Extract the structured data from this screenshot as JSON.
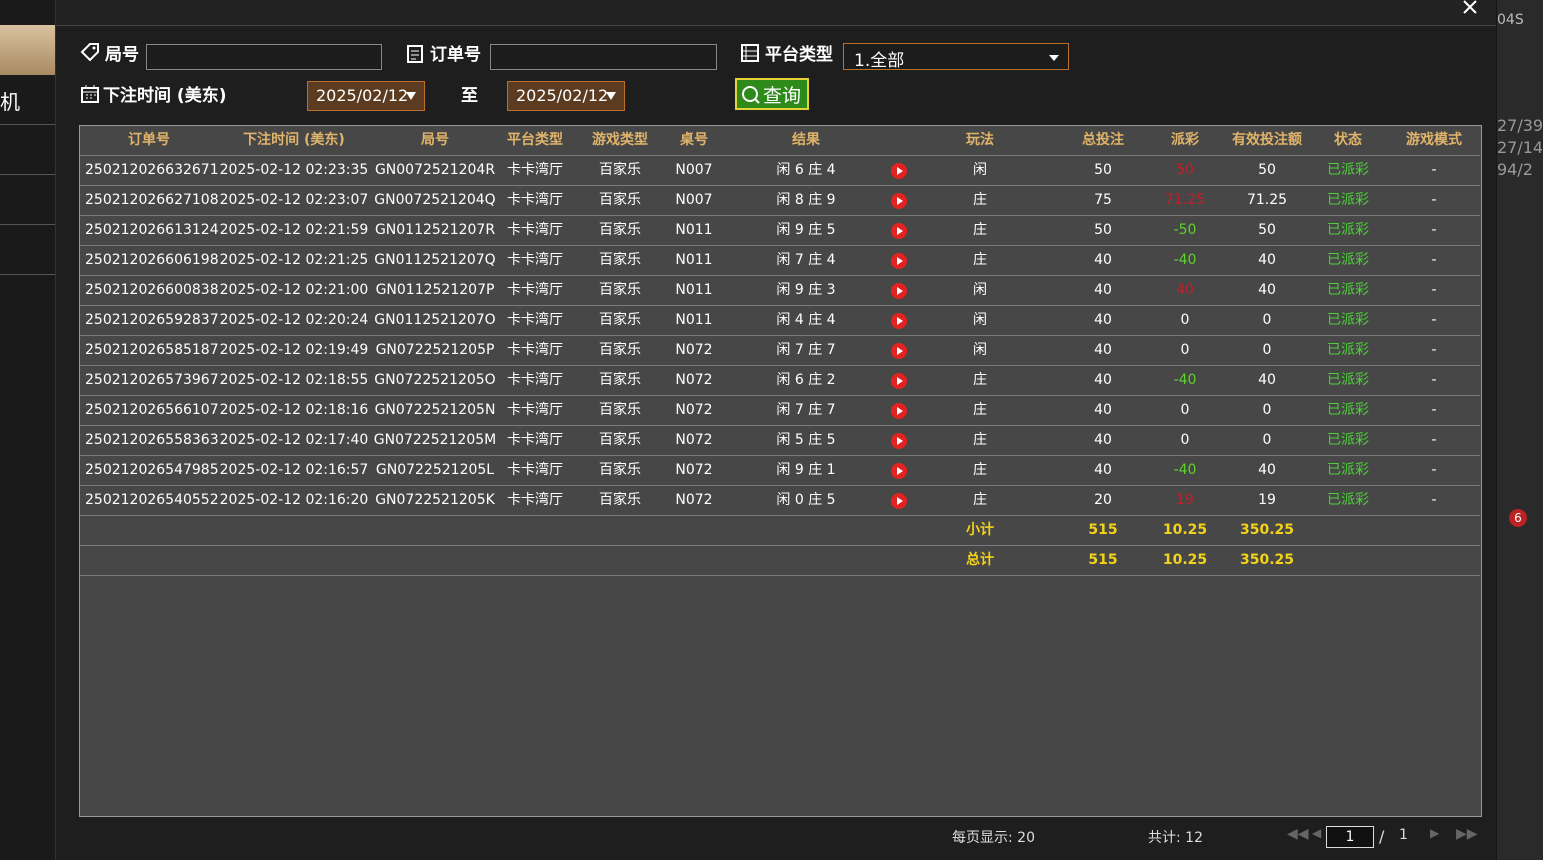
{
  "sidebar": {
    "items": [
      "机"
    ]
  },
  "filters": {
    "round_label": "局号",
    "order_label": "订单号",
    "platform_label": "平台类型",
    "platform_value": "1.全部",
    "time_label": "下注时间 (美东)",
    "date_from": "2025/02/12",
    "to_label": "至",
    "date_to": "2025/02/12",
    "query_button": "查询"
  },
  "table": {
    "headers": [
      "订单号",
      "下注时间 (美东)",
      "局号",
      "平台类型",
      "游戏类型",
      "桌号",
      "结果",
      "玩法",
      "总投注",
      "派彩",
      "有效投注额",
      "状态",
      "游戏模式"
    ],
    "rows": [
      [
        "250212026632671",
        "2025-02-12 02:23:35",
        "GN0072521204R",
        "卡卡湾厅",
        "百家乐",
        "N007",
        "闲 6 庄 4",
        "闲",
        "50",
        "50",
        "50",
        "已派彩",
        "-"
      ],
      [
        "250212026627108",
        "2025-02-12 02:23:07",
        "GN0072521204Q",
        "卡卡湾厅",
        "百家乐",
        "N007",
        "闲 8 庄 9",
        "庄",
        "75",
        "71.25",
        "71.25",
        "已派彩",
        "-"
      ],
      [
        "250212026613124",
        "2025-02-12 02:21:59",
        "GN0112521207R",
        "卡卡湾厅",
        "百家乐",
        "N011",
        "闲 9 庄 5",
        "庄",
        "50",
        "-50",
        "50",
        "已派彩",
        "-"
      ],
      [
        "250212026606198",
        "2025-02-12 02:21:25",
        "GN0112521207Q",
        "卡卡湾厅",
        "百家乐",
        "N011",
        "闲 7 庄 4",
        "庄",
        "40",
        "-40",
        "40",
        "已派彩",
        "-"
      ],
      [
        "250212026600838",
        "2025-02-12 02:21:00",
        "GN0112521207P",
        "卡卡湾厅",
        "百家乐",
        "N011",
        "闲 9 庄 3",
        "闲",
        "40",
        "40",
        "40",
        "已派彩",
        "-"
      ],
      [
        "250212026592837",
        "2025-02-12 02:20:24",
        "GN0112521207O",
        "卡卡湾厅",
        "百家乐",
        "N011",
        "闲 4 庄 4",
        "闲",
        "40",
        "0",
        "0",
        "已派彩",
        "-"
      ],
      [
        "250212026585187",
        "2025-02-12 02:19:49",
        "GN0722521205P",
        "卡卡湾厅",
        "百家乐",
        "N072",
        "闲 7 庄 7",
        "闲",
        "40",
        "0",
        "0",
        "已派彩",
        "-"
      ],
      [
        "250212026573967",
        "2025-02-12 02:18:55",
        "GN0722521205O",
        "卡卡湾厅",
        "百家乐",
        "N072",
        "闲 6 庄 2",
        "庄",
        "40",
        "-40",
        "40",
        "已派彩",
        "-"
      ],
      [
        "250212026566107",
        "2025-02-12 02:18:16",
        "GN0722521205N",
        "卡卡湾厅",
        "百家乐",
        "N072",
        "闲 7 庄 7",
        "庄",
        "40",
        "0",
        "0",
        "已派彩",
        "-"
      ],
      [
        "250212026558363",
        "2025-02-12 02:17:40",
        "GN0722521205M",
        "卡卡湾厅",
        "百家乐",
        "N072",
        "闲 5 庄 5",
        "庄",
        "40",
        "0",
        "0",
        "已派彩",
        "-"
      ],
      [
        "250212026547985",
        "2025-02-12 02:16:57",
        "GN0722521205L",
        "卡卡湾厅",
        "百家乐",
        "N072",
        "闲 9 庄 1",
        "庄",
        "40",
        "-40",
        "40",
        "已派彩",
        "-"
      ],
      [
        "250212026540552",
        "2025-02-12 02:16:20",
        "GN0722521205K",
        "卡卡湾厅",
        "百家乐",
        "N072",
        "闲 0 庄 5",
        "庄",
        "20",
        "19",
        "19",
        "已派彩",
        "-"
      ]
    ],
    "subtotal": {
      "label": "小计",
      "total_bet": "515",
      "payout": "10.25",
      "valid_bet": "350.25"
    },
    "total": {
      "label": "总计",
      "total_bet": "515",
      "payout": "10.25",
      "valid_bet": "350.25"
    }
  },
  "pagination": {
    "page_size": "每页显示: 20",
    "count": "共计: 12",
    "page": "1",
    "separator": "/",
    "pages": "1"
  },
  "side_panel": {
    "texts": [
      "04S",
      "27/39",
      "27/14",
      "94/2",
      "6"
    ]
  }
}
